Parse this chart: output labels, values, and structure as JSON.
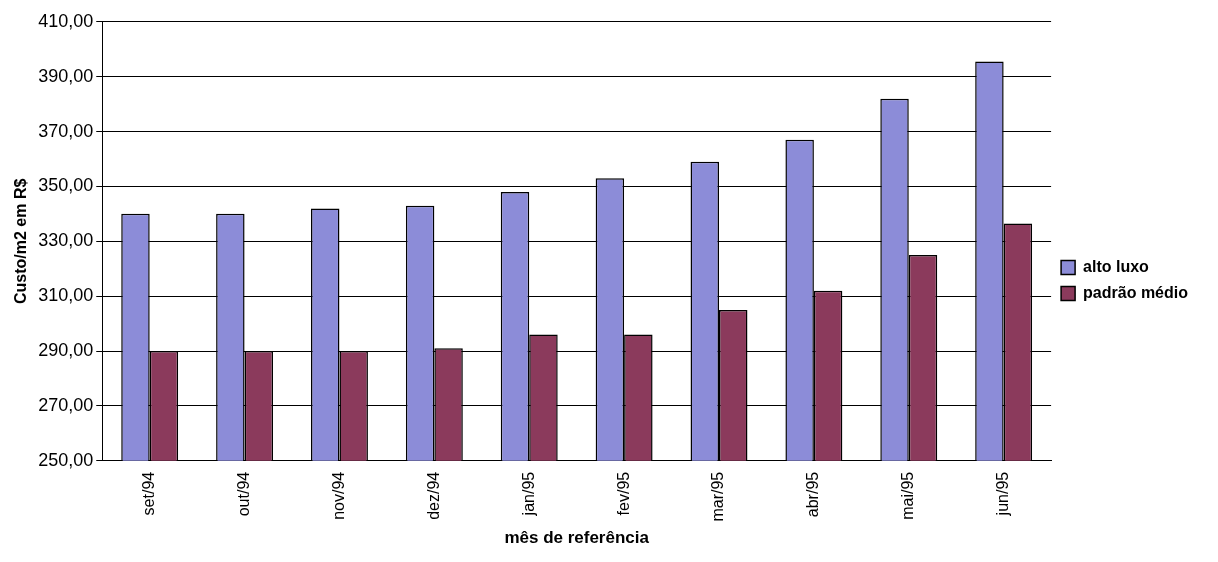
{
  "chart_data": {
    "type": "bar",
    "xlabel": "mês de referência",
    "ylabel": "Custo/m2 em R$",
    "categories": [
      "set/94",
      "out/94",
      "nov/94",
      "dez/94",
      "jan/95",
      "fev/95",
      "mar/95",
      "abr/95",
      "mai/95",
      "jun/95"
    ],
    "series": [
      {
        "name": "alto luxo",
        "color": "#8c8cd8",
        "values": [
          340,
          340,
          342,
          343,
          348,
          353,
          359,
          367,
          382,
          395.5
        ]
      },
      {
        "name": "padrão médio",
        "color": "#8b3a5c",
        "values": [
          290,
          290,
          290,
          291,
          296,
          296,
          305,
          312,
          325,
          336.5
        ]
      }
    ],
    "ylim": [
      250,
      410
    ],
    "yticks": [
      {
        "value": 250,
        "label": "250,00"
      },
      {
        "value": 270,
        "label": "270,00"
      },
      {
        "value": 290,
        "label": "290,00"
      },
      {
        "value": 310,
        "label": "310,00"
      },
      {
        "value": 330,
        "label": "330,00"
      },
      {
        "value": 350,
        "label": "350,00"
      },
      {
        "value": 370,
        "label": "370,00"
      },
      {
        "value": 390,
        "label": "390,00"
      },
      {
        "value": 410,
        "label": "410,00"
      }
    ],
    "grid": "y",
    "legend": "right"
  }
}
